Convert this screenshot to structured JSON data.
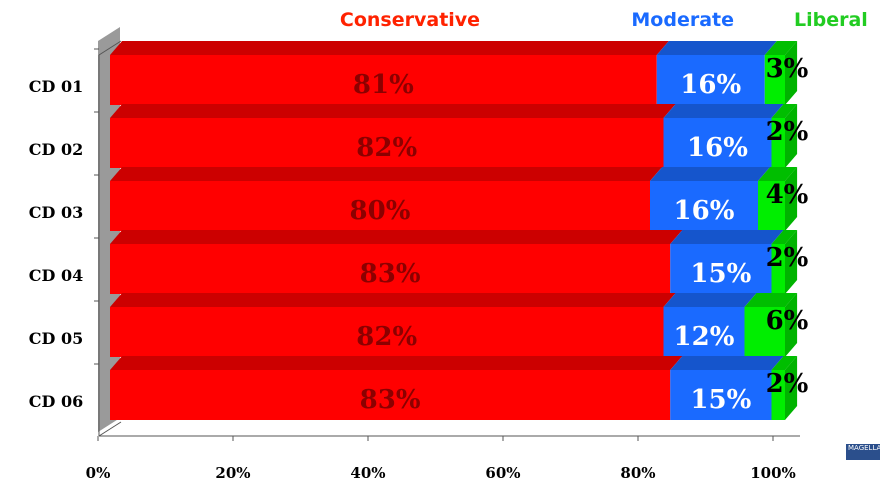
{
  "chart_data": {
    "type": "bar",
    "orientation": "horizontal",
    "stacked": true,
    "style": "3d",
    "categories": [
      "CD 01",
      "CD 02",
      "CD 03",
      "CD 04",
      "CD 05",
      "CD 06"
    ],
    "series": [
      {
        "name": "Conservative",
        "color": "#ff0000",
        "label_color": "#8b0000",
        "values": [
          81,
          82,
          80,
          83,
          82,
          83
        ]
      },
      {
        "name": "Moderate",
        "color": "#1a6aff",
        "label_color": "#ffffff",
        "values": [
          16,
          16,
          16,
          15,
          12,
          15
        ]
      },
      {
        "name": "Liberal",
        "color": "#00ee00",
        "label_color": "#000000",
        "values": [
          3,
          2,
          4,
          2,
          6,
          2
        ]
      }
    ],
    "legend": {
      "position": "top",
      "colors": [
        "#ff2200",
        "#1a6aff",
        "#22cc22"
      ]
    },
    "xlim": [
      0,
      100
    ],
    "xticks": [
      "0%",
      "20%",
      "40%",
      "60%",
      "80%",
      "100%"
    ],
    "value_format": "percent",
    "grid": false
  },
  "logo_text": "MAGELLAN"
}
